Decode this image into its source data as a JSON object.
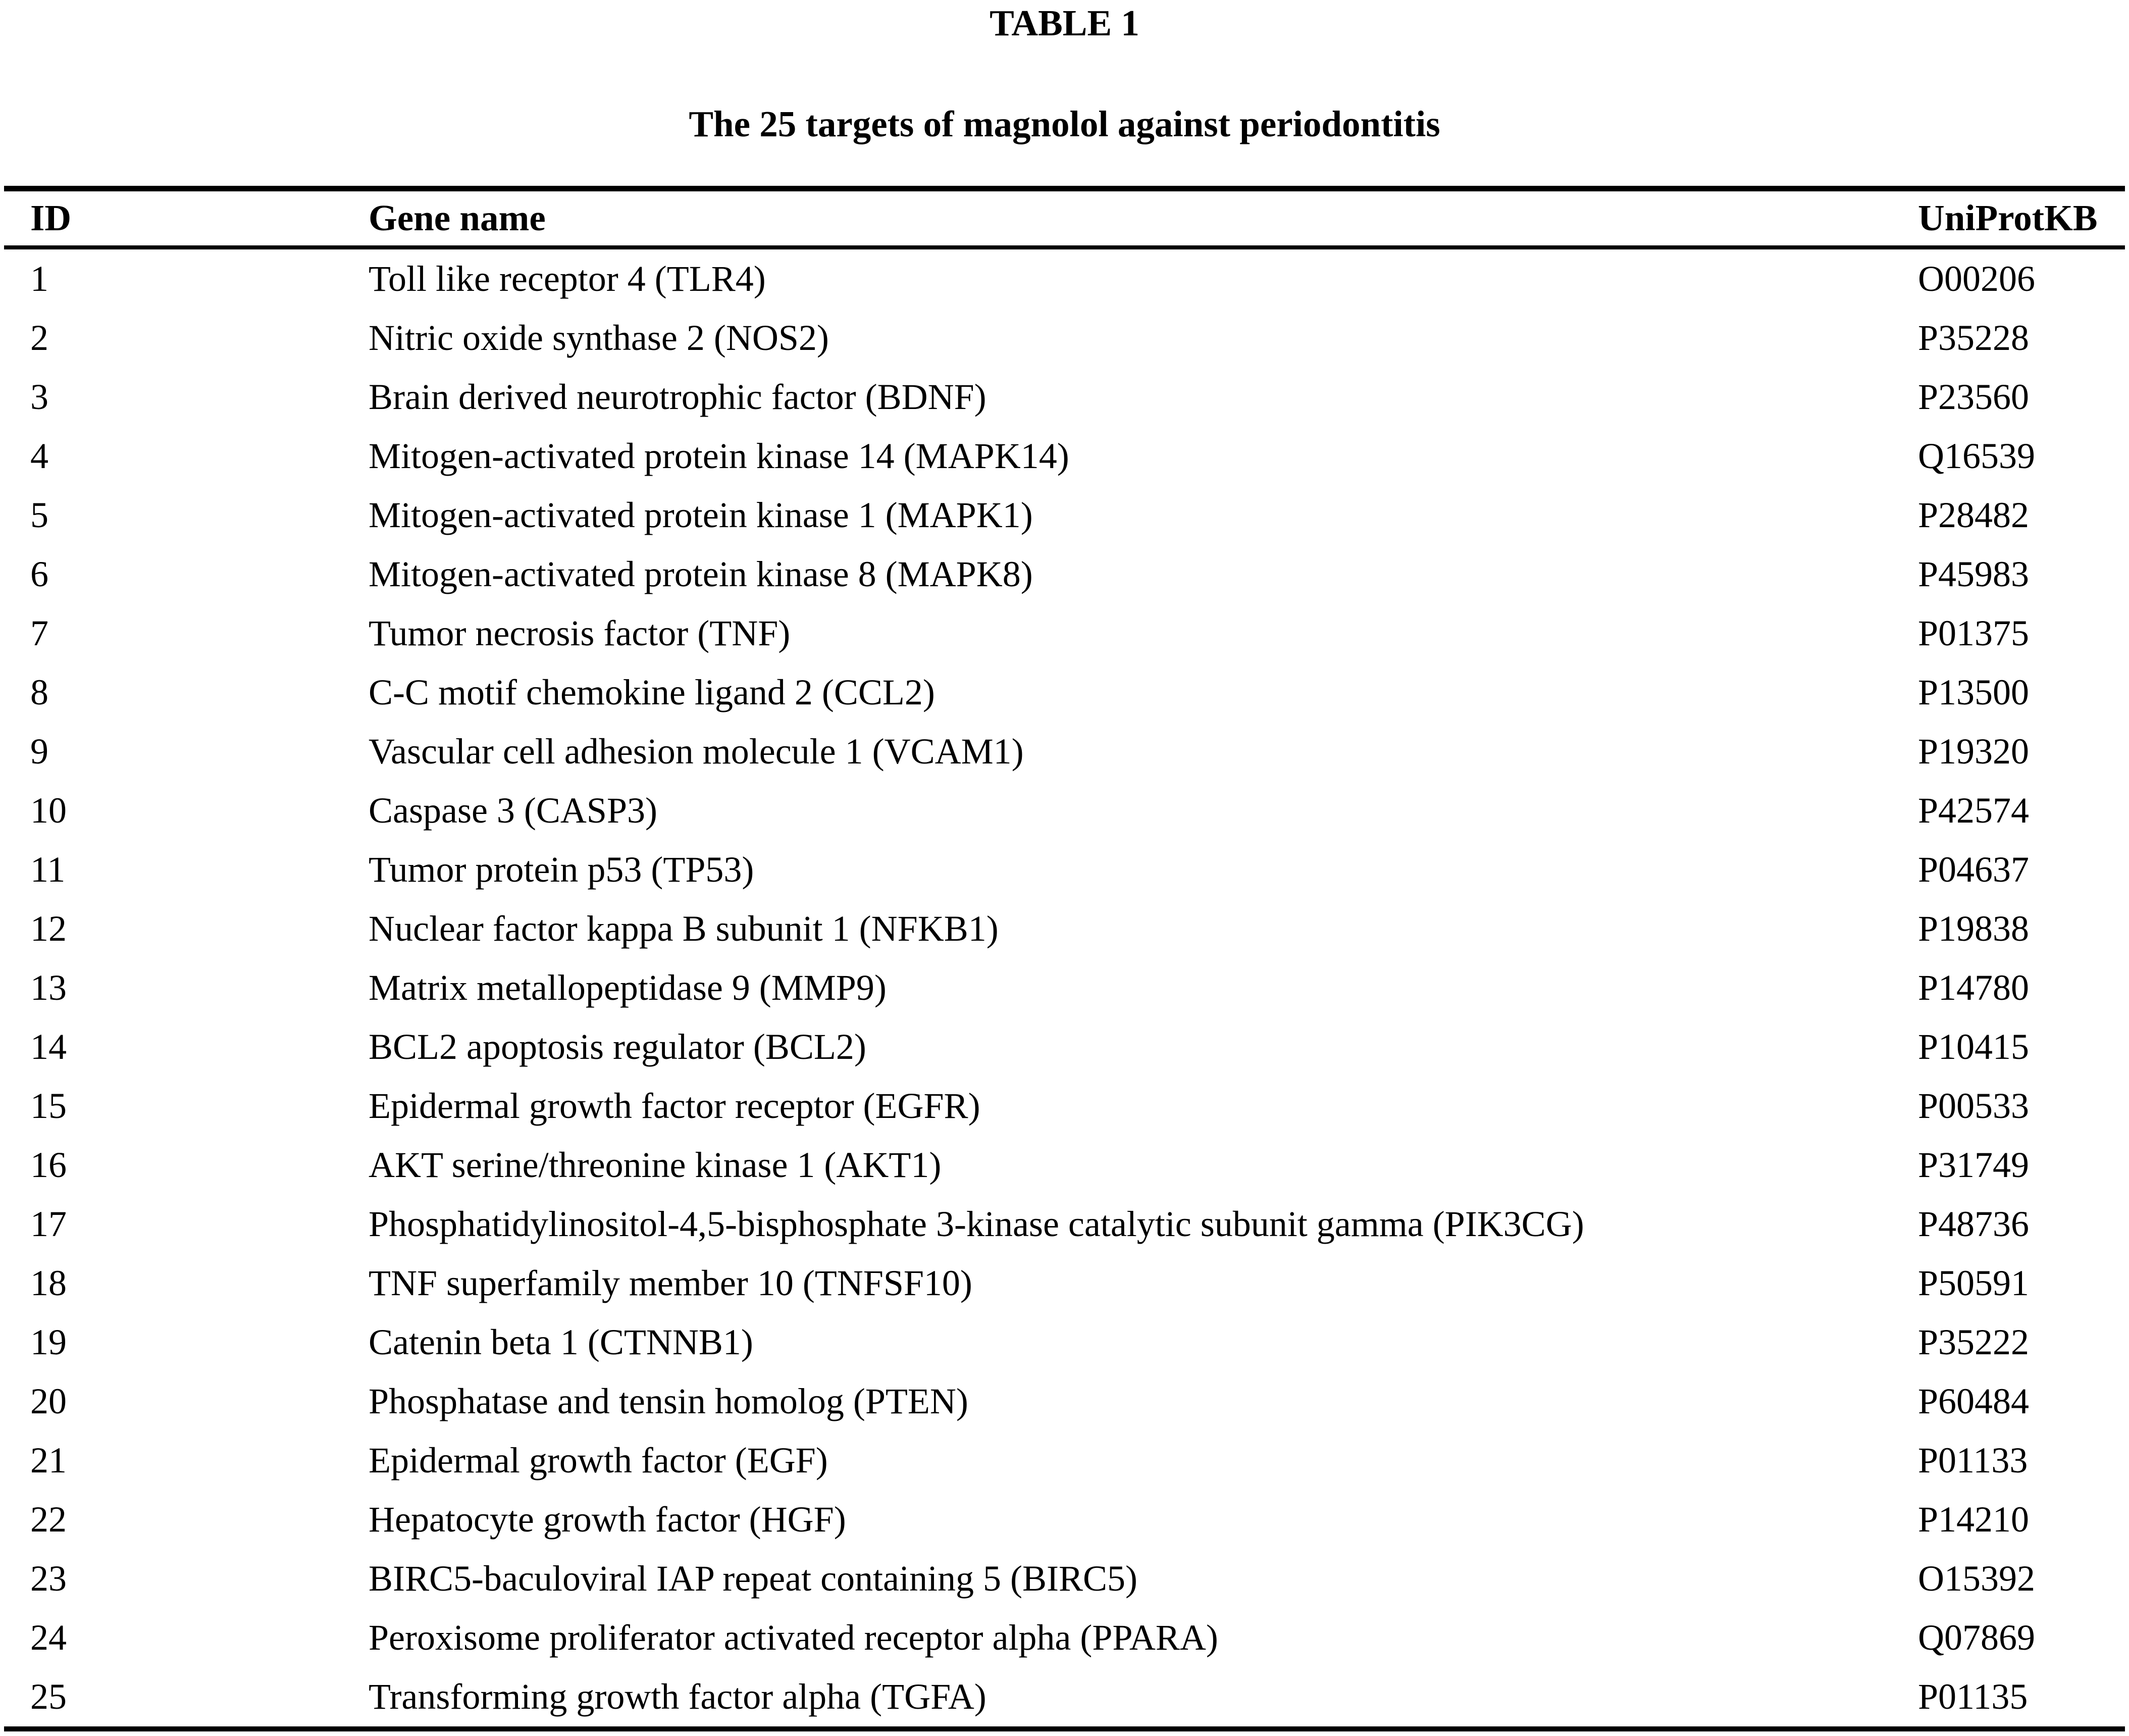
{
  "table": {
    "title": "TABLE 1",
    "subtitle": "The 25 targets of magnolol against periodontitis",
    "columns": {
      "id": "ID",
      "gene": "Gene name",
      "uniprot": "UniProtKB"
    },
    "rows": [
      {
        "id": "1",
        "gene": "Toll like receptor 4 (TLR4)",
        "uniprot": "O00206"
      },
      {
        "id": "2",
        "gene": "Nitric oxide synthase 2 (NOS2)",
        "uniprot": "P35228"
      },
      {
        "id": "3",
        "gene": "Brain derived neurotrophic factor (BDNF)",
        "uniprot": "P23560"
      },
      {
        "id": "4",
        "gene": "Mitogen-activated protein kinase 14 (MAPK14)",
        "uniprot": "Q16539"
      },
      {
        "id": "5",
        "gene": "Mitogen-activated protein kinase 1 (MAPK1)",
        "uniprot": "P28482"
      },
      {
        "id": "6",
        "gene": "Mitogen-activated protein kinase 8 (MAPK8)",
        "uniprot": "P45983"
      },
      {
        "id": "7",
        "gene": "Tumor necrosis factor (TNF)",
        "uniprot": "P01375"
      },
      {
        "id": "8",
        "gene": "C-C motif chemokine ligand 2 (CCL2)",
        "uniprot": "P13500"
      },
      {
        "id": "9",
        "gene": "Vascular cell adhesion molecule 1 (VCAM1)",
        "uniprot": "P19320"
      },
      {
        "id": "10",
        "gene": "Caspase 3 (CASP3)",
        "uniprot": "P42574"
      },
      {
        "id": "11",
        "gene": "Tumor protein p53 (TP53)",
        "uniprot": "P04637"
      },
      {
        "id": "12",
        "gene": "Nuclear factor kappa B subunit 1 (NFKB1)",
        "uniprot": "P19838"
      },
      {
        "id": "13",
        "gene": "Matrix metallopeptidase 9 (MMP9)",
        "uniprot": "P14780"
      },
      {
        "id": "14",
        "gene": "BCL2 apoptosis regulator (BCL2)",
        "uniprot": "P10415"
      },
      {
        "id": "15",
        "gene": "Epidermal growth factor receptor (EGFR)",
        "uniprot": "P00533"
      },
      {
        "id": "16",
        "gene": "AKT serine/threonine kinase 1 (AKT1)",
        "uniprot": "P31749"
      },
      {
        "id": "17",
        "gene": "Phosphatidylinositol-4,5-bisphosphate 3-kinase catalytic subunit gamma (PIK3CG)",
        "uniprot": "P48736"
      },
      {
        "id": "18",
        "gene": "TNF superfamily member 10 (TNFSF10)",
        "uniprot": "P50591"
      },
      {
        "id": "19",
        "gene": "Catenin beta 1 (CTNNB1)",
        "uniprot": "P35222"
      },
      {
        "id": "20",
        "gene": "Phosphatase and tensin homolog (PTEN)",
        "uniprot": "P60484"
      },
      {
        "id": "21",
        "gene": "Epidermal growth factor (EGF)",
        "uniprot": "P01133"
      },
      {
        "id": "22",
        "gene": "Hepatocyte growth factor (HGF)",
        "uniprot": "P14210"
      },
      {
        "id": "23",
        "gene": "BIRC5-baculoviral IAP repeat containing 5 (BIRC5)",
        "uniprot": "O15392"
      },
      {
        "id": "24",
        "gene": "Peroxisome proliferator activated receptor alpha (PPARA)",
        "uniprot": "Q07869"
      },
      {
        "id": "25",
        "gene": "Transforming growth factor alpha (TGFA)",
        "uniprot": "P01135"
      }
    ]
  }
}
